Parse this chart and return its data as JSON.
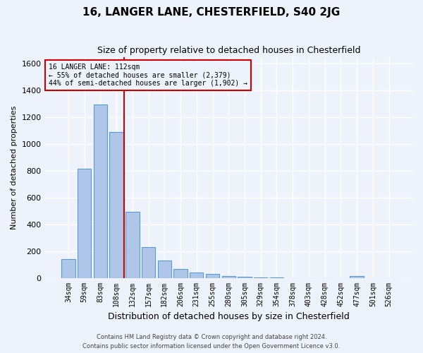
{
  "title": "16, LANGER LANE, CHESTERFIELD, S40 2JG",
  "subtitle": "Size of property relative to detached houses in Chesterfield",
  "xlabel": "Distribution of detached houses by size in Chesterfield",
  "ylabel": "Number of detached properties",
  "footer_line1": "Contains HM Land Registry data © Crown copyright and database right 2024.",
  "footer_line2": "Contains public sector information licensed under the Open Government Licence v3.0.",
  "categories": [
    "34sqm",
    "59sqm",
    "83sqm",
    "108sqm",
    "132sqm",
    "157sqm",
    "182sqm",
    "206sqm",
    "231sqm",
    "255sqm",
    "280sqm",
    "305sqm",
    "329sqm",
    "354sqm",
    "378sqm",
    "403sqm",
    "428sqm",
    "452sqm",
    "477sqm",
    "501sqm",
    "526sqm"
  ],
  "values": [
    140,
    815,
    1295,
    1090,
    495,
    232,
    130,
    67,
    38,
    27,
    15,
    8,
    3,
    1,
    0,
    0,
    0,
    0,
    12,
    0,
    0
  ],
  "bar_color": "#aec6e8",
  "bar_edge_color": "#5b9bd5",
  "vline_x_index": 3,
  "vline_color": "#cc0000",
  "annotation_title": "16 LANGER LANE: 112sqm",
  "annotation_line1": "← 55% of detached houses are smaller (2,379)",
  "annotation_line2": "44% of semi-detached houses are larger (1,902) →",
  "annotation_box_color": "#cc0000",
  "ylim": [
    0,
    1650
  ],
  "yticks": [
    0,
    200,
    400,
    600,
    800,
    1000,
    1200,
    1400,
    1600
  ],
  "background_color": "#eef2fb",
  "grid_color": "#ffffff",
  "title_fontsize": 11,
  "subtitle_fontsize": 9,
  "xlabel_fontsize": 9,
  "ylabel_fontsize": 8,
  "tick_fontsize": 7,
  "footer_fontsize": 6
}
